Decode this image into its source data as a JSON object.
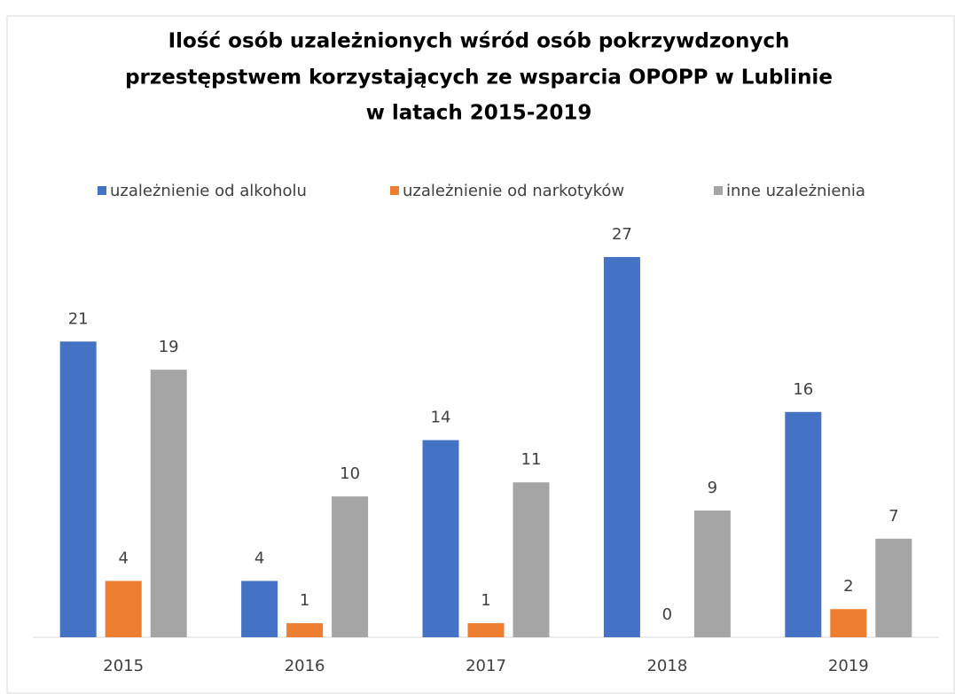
{
  "chart_data": {
    "type": "bar",
    "title": [
      "Ilość osób uzależnionych wśród osób pokrzywdzonych",
      "przestępstwem korzystających ze wsparcia OPOPP w Lublinie",
      "w latach 2015-2019"
    ],
    "categories": [
      "2015",
      "2016",
      "2017",
      "2018",
      "2019"
    ],
    "series": [
      {
        "name": "uzależnienie od alkoholu",
        "color": "#4472c4",
        "values": [
          21,
          4,
          14,
          27,
          16
        ]
      },
      {
        "name": "uzależnienie od narkotyków",
        "color": "#ed7d31",
        "values": [
          4,
          1,
          1,
          0,
          2
        ]
      },
      {
        "name": "inne uzależnienia",
        "color": "#a5a5a5",
        "values": [
          19,
          10,
          11,
          9,
          7
        ]
      }
    ],
    "legend": "top"
  }
}
